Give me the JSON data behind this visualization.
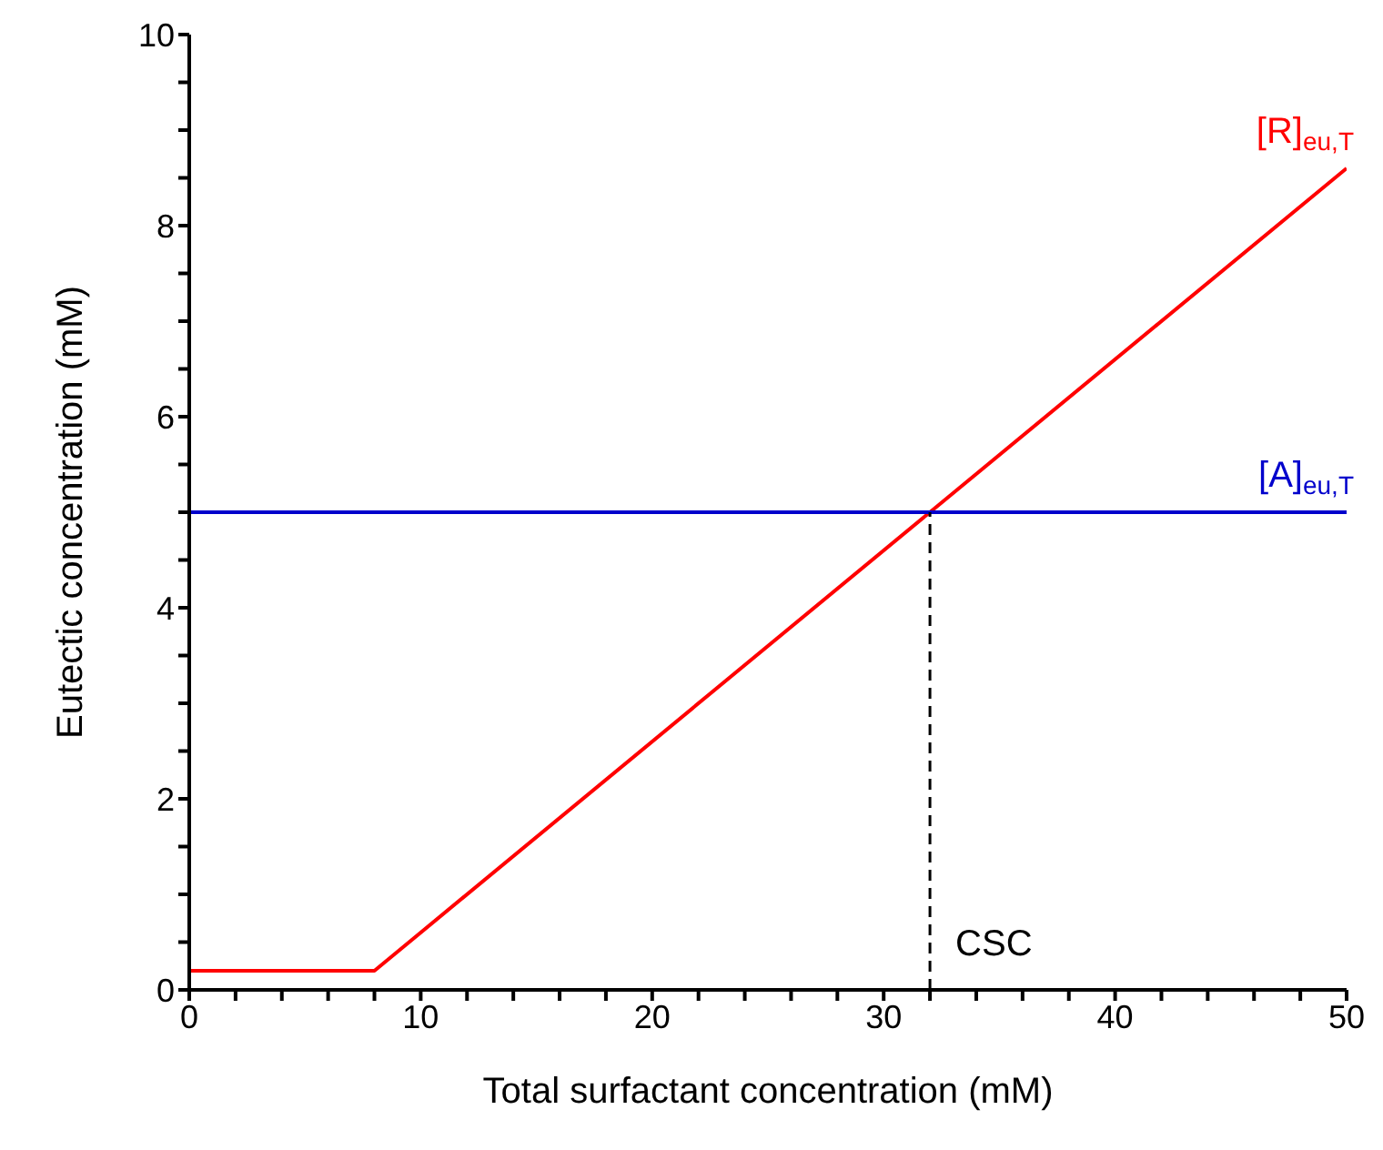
{
  "chart_data": {
    "type": "line",
    "xlabel": "Total surfactant concentration (mM)",
    "ylabel": "Eutectic concentration (mM)",
    "xlim": [
      0,
      50
    ],
    "ylim": [
      0,
      10
    ],
    "xticks": [
      0,
      {
        "value": 2,
        "label": null
      },
      {
        "value": 4,
        "label": null
      },
      {
        "value": 6,
        "label": null
      },
      {
        "value": 8,
        "label": null
      },
      10,
      {
        "value": 12,
        "label": null
      },
      {
        "value": 14,
        "label": null
      },
      {
        "value": 16,
        "label": null
      },
      {
        "value": 18,
        "label": null
      },
      20,
      {
        "value": 22,
        "label": null
      },
      {
        "value": 24,
        "label": null
      },
      {
        "value": 26,
        "label": null
      },
      {
        "value": 28,
        "label": null
      },
      30,
      {
        "value": 32,
        "label": null
      },
      {
        "value": 34,
        "label": null
      },
      {
        "value": 36,
        "label": null
      },
      {
        "value": 38,
        "label": null
      },
      40,
      {
        "value": 42,
        "label": null
      },
      {
        "value": 44,
        "label": null
      },
      {
        "value": 46,
        "label": null
      },
      {
        "value": 48,
        "label": null
      },
      50
    ],
    "yticks": [
      0,
      {
        "value": 0.5,
        "label": null
      },
      {
        "value": 1,
        "label": null
      },
      {
        "value": 1.5,
        "label": null
      },
      2,
      {
        "value": 2.5,
        "label": null
      },
      {
        "value": 3,
        "label": null
      },
      {
        "value": 3.5,
        "label": null
      },
      4,
      {
        "value": 4.5,
        "label": null
      },
      {
        "value": 5,
        "label": null
      },
      {
        "value": 5.5,
        "label": null
      },
      6,
      {
        "value": 6.5,
        "label": null
      },
      {
        "value": 7,
        "label": null
      },
      {
        "value": 7.5,
        "label": null
      },
      8,
      {
        "value": 8.5,
        "label": null
      },
      {
        "value": 9,
        "label": null
      },
      {
        "value": 9.5,
        "label": null
      },
      10
    ],
    "grid": false,
    "legend": false,
    "marker": "none",
    "series": [
      {
        "name": "[R]$_{eu,T}$",
        "color": "#ff0000",
        "x": [
          0,
          8,
          32,
          50
        ],
        "values": [
          0.2,
          0.2,
          5,
          8.6
        ]
      },
      {
        "name": "[A]$_{eu,T}$",
        "color": "#0000cc",
        "x": [
          0,
          50
        ],
        "values": [
          5,
          5
        ]
      },
      {
        "color": "#000000",
        "x": [
          32,
          32
        ],
        "values": [
          0,
          5
        ],
        "line_style": "dashed"
      }
    ],
    "annotations": [
      {
        "text": "CSC",
        "x": 32,
        "y": 0.5
      }
    ]
  }
}
